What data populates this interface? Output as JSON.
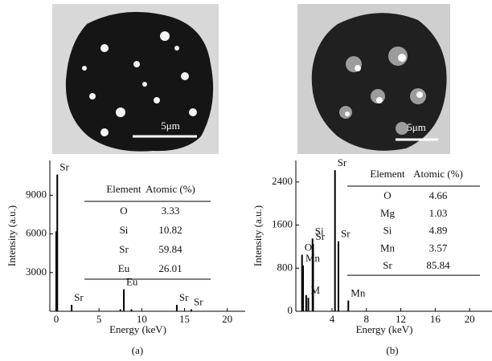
{
  "chart_data": [
    {
      "type": "spectrum",
      "panel_label": "(a)",
      "scale_bar": "5μm",
      "xlabel": "Energy (keV)",
      "ylabel": "Intensity (a.u.)",
      "x": [
        0.0,
        0.12,
        1.8,
        7.5,
        7.9,
        8.8,
        14.1,
        15.8
      ],
      "values": [
        6200,
        10600,
        500,
        150,
        1700,
        150,
        500,
        150
      ],
      "labels": [
        null,
        "Sr",
        "Sr",
        null,
        "Eu",
        null,
        "Sr",
        "Sr"
      ],
      "color": "#000000",
      "xlim": [
        -0.75,
        22.1
      ],
      "xticks": [
        0,
        5,
        10,
        15,
        20
      ],
      "ylim": [
        0,
        11700
      ],
      "yticks": [
        3000,
        6000,
        9000
      ],
      "table": {
        "header": [
          "Element",
          "Atomic (%)"
        ],
        "rows": [
          [
            "O",
            3.33
          ],
          [
            "Si",
            10.82
          ],
          [
            "Sr",
            59.84
          ],
          [
            "Eu",
            26.01
          ]
        ]
      }
    },
    {
      "type": "spectrum",
      "panel_label": "(b)",
      "scale_bar": "5μm",
      "xlabel": "Energy (keV)",
      "ylabel": "Intensity (a.u.)",
      "x": [
        0.52,
        0.64,
        1.0,
        1.25,
        1.74,
        1.81,
        4.35,
        4.75,
        5.9
      ],
      "values": [
        1050,
        850,
        300,
        250,
        1350,
        1250,
        2620,
        1300,
        200
      ],
      "labels": [
        "O",
        "Mn",
        null,
        "M",
        "Si",
        "Sr",
        "Sr",
        "Sr",
        "Mn"
      ],
      "color": "#000000",
      "xlim": [
        -0.2,
        22.6
      ],
      "xticks": [
        4,
        8,
        12,
        16,
        20
      ],
      "ylim": [
        0,
        2800
      ],
      "yticks": [
        0,
        800,
        1600,
        2400
      ],
      "table": {
        "header": [
          "Element",
          "Atomic (%)"
        ],
        "rows": [
          [
            "O",
            4.66
          ],
          [
            "Mg",
            1.03
          ],
          [
            "Si",
            4.89
          ],
          [
            "Mn",
            3.57
          ],
          [
            "Sr",
            85.84
          ]
        ]
      }
    }
  ]
}
